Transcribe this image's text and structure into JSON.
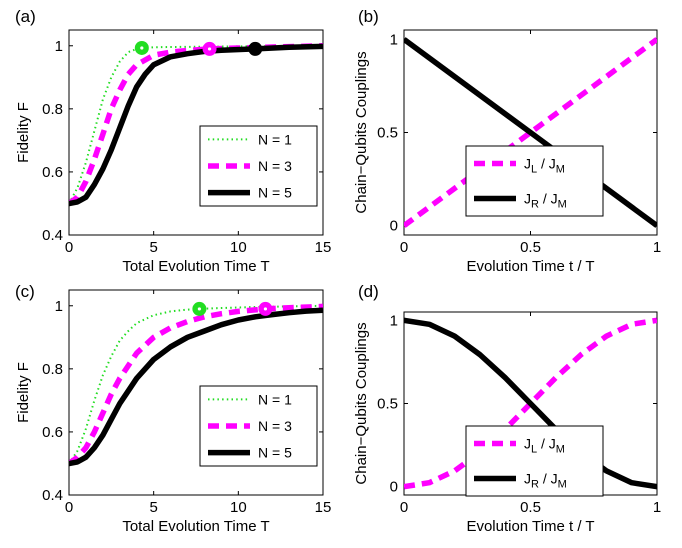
{
  "chart_data": [
    {
      "type": "line",
      "panel_label": "(a)",
      "xlabel": "Total Evolution Time T",
      "ylabel": "Fidelity F",
      "xlim": [
        0,
        15
      ],
      "ylim": [
        0.4,
        1.05
      ],
      "xticks": [
        0,
        5,
        10,
        15
      ],
      "yticks": [
        0.4,
        0.6,
        0.8,
        1
      ],
      "ytick_labels": [
        "0.4",
        "0.6",
        "0.8",
        "1"
      ],
      "legend_position": "bottom-right",
      "series": [
        {
          "name": "N = 1",
          "color": "#22dd22",
          "style": "dotted",
          "x": [
            0,
            0.5,
            1,
            1.5,
            2,
            2.5,
            3,
            3.5,
            4,
            4.3,
            5,
            6,
            8,
            10,
            12,
            15
          ],
          "y": [
            0.5,
            0.55,
            0.63,
            0.73,
            0.83,
            0.9,
            0.95,
            0.98,
            0.99,
            0.993,
            0.995,
            0.996,
            0.997,
            0.998,
            0.999,
            1.0
          ],
          "marker": {
            "x": 4.3,
            "y": 0.993
          }
        },
        {
          "name": "N = 3",
          "color": "#ff00ff",
          "style": "dashed",
          "x": [
            0,
            0.5,
            1,
            1.5,
            2,
            2.5,
            3,
            3.5,
            4,
            5,
            6,
            7,
            8.3,
            10,
            12,
            15
          ],
          "y": [
            0.5,
            0.52,
            0.57,
            0.64,
            0.72,
            0.8,
            0.86,
            0.91,
            0.94,
            0.97,
            0.98,
            0.985,
            0.99,
            0.993,
            0.996,
            1.0
          ],
          "marker": {
            "x": 8.3,
            "y": 0.99
          }
        },
        {
          "name": "N = 5",
          "color": "#000000",
          "style": "solid",
          "x": [
            0,
            0.5,
            1,
            1.5,
            2,
            2.5,
            3,
            3.5,
            4,
            4.5,
            5,
            6,
            7,
            8,
            9,
            11,
            13,
            15
          ],
          "y": [
            0.5,
            0.505,
            0.52,
            0.56,
            0.61,
            0.67,
            0.74,
            0.81,
            0.87,
            0.91,
            0.94,
            0.965,
            0.975,
            0.982,
            0.986,
            0.99,
            0.995,
            0.998
          ],
          "marker": {
            "x": 11,
            "y": 0.99
          }
        }
      ]
    },
    {
      "type": "line",
      "panel_label": "(b)",
      "xlabel": "Evolution Time t / T",
      "ylabel": "Chain−Qubits Couplings",
      "xlim": [
        0,
        1
      ],
      "ylim": [
        -0.05,
        1.05
      ],
      "xticks": [
        0,
        0.5,
        1
      ],
      "yticks": [
        0,
        0.5,
        1
      ],
      "ytick_labels": [
        "0",
        "0.5",
        "1"
      ],
      "legend_position": "bottom-right",
      "series": [
        {
          "name": "J_L / J_M",
          "label_main": "J",
          "label_sub": "L",
          "label_rest": " / J",
          "label_sub2": "M",
          "color": "#ff00ff",
          "style": "dashed",
          "x": [
            0,
            1
          ],
          "y": [
            0,
            1
          ]
        },
        {
          "name": "J_R / J_M",
          "label_main": "J",
          "label_sub": "R",
          "label_rest": " / J",
          "label_sub2": "M",
          "color": "#000000",
          "style": "solid",
          "x": [
            0,
            1
          ],
          "y": [
            1,
            0
          ]
        }
      ]
    },
    {
      "type": "line",
      "panel_label": "(c)",
      "xlabel": "Total Evolution Time T",
      "ylabel": "Fidelity F",
      "xlim": [
        0,
        15
      ],
      "ylim": [
        0.4,
        1.05
      ],
      "xticks": [
        0,
        5,
        10,
        15
      ],
      "yticks": [
        0.4,
        0.6,
        0.8,
        1
      ],
      "ytick_labels": [
        "0.4",
        "0.6",
        "0.8",
        "1"
      ],
      "legend_position": "bottom-right",
      "series": [
        {
          "name": "N = 1",
          "color": "#22dd22",
          "style": "dotted",
          "x": [
            0,
            0.5,
            1,
            1.5,
            2,
            2.5,
            3,
            3.5,
            4,
            5,
            6,
            7,
            7.7,
            9,
            11,
            15
          ],
          "y": [
            0.5,
            0.54,
            0.61,
            0.7,
            0.78,
            0.84,
            0.89,
            0.92,
            0.945,
            0.97,
            0.982,
            0.988,
            0.99,
            0.993,
            0.996,
            1.0
          ],
          "marker": {
            "x": 7.7,
            "y": 0.99
          }
        },
        {
          "name": "N = 3",
          "color": "#ff00ff",
          "style": "dashed",
          "x": [
            0,
            0.5,
            1,
            1.5,
            2,
            2.5,
            3,
            4,
            5,
            6,
            7,
            8,
            9,
            10,
            11.6,
            13,
            15
          ],
          "y": [
            0.5,
            0.52,
            0.55,
            0.6,
            0.66,
            0.72,
            0.77,
            0.85,
            0.9,
            0.93,
            0.95,
            0.965,
            0.975,
            0.982,
            0.99,
            0.994,
            0.998
          ],
          "marker": {
            "x": 11.6,
            "y": 0.99
          }
        },
        {
          "name": "N = 5",
          "color": "#000000",
          "style": "solid",
          "x": [
            0,
            0.5,
            1,
            1.5,
            2,
            2.5,
            3,
            4,
            5,
            6,
            7,
            8,
            9,
            10,
            11,
            12,
            13,
            14,
            15
          ],
          "y": [
            0.5,
            0.505,
            0.52,
            0.55,
            0.59,
            0.64,
            0.69,
            0.77,
            0.83,
            0.87,
            0.9,
            0.92,
            0.94,
            0.955,
            0.965,
            0.972,
            0.978,
            0.983,
            0.986
          ]
        }
      ]
    },
    {
      "type": "line",
      "panel_label": "(d)",
      "xlabel": "Evolution Time t / T",
      "ylabel": "Chain−Qubits Couplings",
      "xlim": [
        0,
        1
      ],
      "ylim": [
        -0.05,
        1.05
      ],
      "xticks": [
        0,
        0.5,
        1
      ],
      "yticks": [
        0,
        0.5,
        1
      ],
      "ytick_labels": [
        "0",
        "0.5",
        "1"
      ],
      "legend_position": "bottom-right",
      "series": [
        {
          "name": "J_L / J_M",
          "label_main": "J",
          "label_sub": "L",
          "label_rest": " / J",
          "label_sub2": "M",
          "color": "#ff00ff",
          "style": "dashed",
          "x": [
            0,
            0.1,
            0.2,
            0.3,
            0.4,
            0.5,
            0.6,
            0.7,
            0.8,
            0.9,
            1
          ],
          "y": [
            0,
            0.024,
            0.095,
            0.206,
            0.345,
            0.5,
            0.655,
            0.794,
            0.905,
            0.976,
            1
          ]
        },
        {
          "name": "J_R / J_M",
          "label_main": "J",
          "label_sub": "R",
          "label_rest": " / J",
          "label_sub2": "M",
          "color": "#000000",
          "style": "solid",
          "x": [
            0,
            0.1,
            0.2,
            0.3,
            0.4,
            0.5,
            0.6,
            0.7,
            0.8,
            0.9,
            1
          ],
          "y": [
            1,
            0.976,
            0.905,
            0.794,
            0.655,
            0.5,
            0.345,
            0.206,
            0.095,
            0.024,
            0
          ]
        }
      ]
    }
  ]
}
